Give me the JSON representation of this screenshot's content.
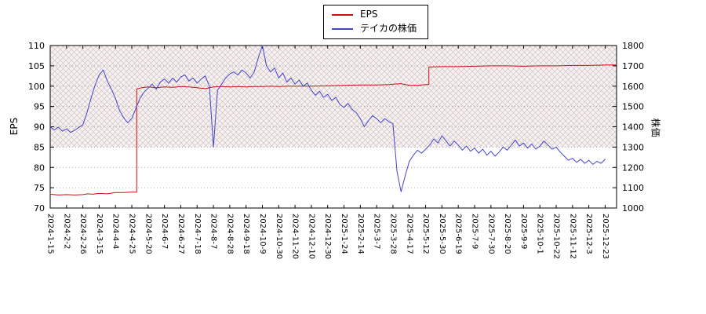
{
  "legend": {
    "items": [
      {
        "label": "EPS",
        "color": "#cc1111"
      },
      {
        "label": "テイカの株価",
        "color": "#4444cc"
      }
    ]
  },
  "chart_data": {
    "type": "line",
    "title": "",
    "grid": "horizontal-dotted",
    "legend_position": "top-center",
    "hatch_region": {
      "axis": "left",
      "y_from": 85,
      "y_to": 110,
      "fill": "#f7f1f1",
      "line_color": "#c9bcbc"
    },
    "x_axis": {
      "min": 0,
      "max": 34.7,
      "tick_labels": [
        "2024-1-15",
        "2024-2-2",
        "2024-2-26",
        "2024-3-15",
        "2024-4-4",
        "2024-4-25",
        "2024-5-20",
        "2024-6-7",
        "2024-6-27",
        "2024-7-18",
        "2024-8-7",
        "2024-8-28",
        "2024-9-18",
        "2024-10-9",
        "2024-10-30",
        "2024-11-20",
        "2024-12-10",
        "2024-12-30",
        "2025-1-24",
        "2025-2-14",
        "2025-3-7",
        "2025-3-28",
        "2025-4-17",
        "2025-5-12",
        "2025-5-30",
        "2025-6-19",
        "2025-7-9",
        "2025-7-30",
        "2025-8-20",
        "2025-9-9",
        "2025-10-1",
        "2025-10-22",
        "2025-11-12",
        "2025-12-3",
        "2025-12-23"
      ]
    },
    "y_left": {
      "label": "EPS",
      "min": 70,
      "max": 110,
      "ticks": [
        70,
        75,
        80,
        85,
        90,
        95,
        100,
        105,
        110
      ]
    },
    "y_right": {
      "label": "株価",
      "min": 1000,
      "max": 1800,
      "ticks": [
        1000,
        1100,
        1200,
        1300,
        1400,
        1500,
        1600,
        1700,
        1800
      ]
    },
    "series": [
      {
        "name": "EPS",
        "axis": "left",
        "color": "#cc1111",
        "points": [
          [
            0,
            73.4
          ],
          [
            0.5,
            73.2
          ],
          [
            1,
            73.3
          ],
          [
            1.5,
            73.2
          ],
          [
            2,
            73.3
          ],
          [
            2.3,
            73.5
          ],
          [
            2.6,
            73.4
          ],
          [
            3,
            73.6
          ],
          [
            3.5,
            73.5
          ],
          [
            4,
            73.8
          ],
          [
            4.5,
            73.8
          ],
          [
            5,
            73.9
          ],
          [
            5.3,
            73.9
          ],
          [
            5.3,
            99.3
          ],
          [
            5.6,
            99.6
          ],
          [
            6,
            99.8
          ],
          [
            6.5,
            99.6
          ],
          [
            7,
            99.8
          ],
          [
            7.5,
            99.7
          ],
          [
            8,
            99.9
          ],
          [
            8.5,
            99.8
          ],
          [
            9,
            99.6
          ],
          [
            9.5,
            99.4
          ],
          [
            10,
            99.8
          ],
          [
            10.5,
            99.9
          ],
          [
            11,
            99.8
          ],
          [
            11.5,
            99.9
          ],
          [
            12,
            99.8
          ],
          [
            12.5,
            99.9
          ],
          [
            13,
            99.9
          ],
          [
            13.5,
            100
          ],
          [
            14,
            99.9
          ],
          [
            14.5,
            100
          ],
          [
            15,
            100
          ],
          [
            16,
            100
          ],
          [
            17,
            100.1
          ],
          [
            18,
            100.2
          ],
          [
            19,
            100.3
          ],
          [
            20,
            100.3
          ],
          [
            20.8,
            100.4
          ],
          [
            21,
            100.5
          ],
          [
            21.5,
            100.6
          ],
          [
            22,
            100.2
          ],
          [
            22.5,
            100.2
          ],
          [
            23,
            100.4
          ],
          [
            23.2,
            100.4
          ],
          [
            23.2,
            104.7
          ],
          [
            24,
            104.8
          ],
          [
            25,
            104.8
          ],
          [
            26,
            104.9
          ],
          [
            27,
            105
          ],
          [
            28,
            105
          ],
          [
            29,
            104.9
          ],
          [
            30,
            105
          ],
          [
            31,
            105
          ],
          [
            32,
            105.1
          ],
          [
            33,
            105.1
          ],
          [
            34,
            105.2
          ],
          [
            34.7,
            105.2
          ]
        ]
      },
      {
        "name": "テイカの株価",
        "axis": "right",
        "color": "#4444cc",
        "x_start": 0,
        "x_step": 0.25,
        "values": [
          1400,
          1385,
          1398,
          1378,
          1390,
          1372,
          1383,
          1397,
          1410,
          1468,
          1540,
          1605,
          1655,
          1680,
          1625,
          1585,
          1540,
          1480,
          1445,
          1420,
          1440,
          1490,
          1540,
          1570,
          1590,
          1610,
          1585,
          1620,
          1635,
          1615,
          1640,
          1620,
          1645,
          1655,
          1625,
          1640,
          1615,
          1635,
          1650,
          1600,
          1300,
          1580,
          1610,
          1640,
          1660,
          1670,
          1655,
          1680,
          1665,
          1640,
          1670,
          1740,
          1800,
          1700,
          1670,
          1690,
          1640,
          1665,
          1620,
          1640,
          1610,
          1630,
          1600,
          1615,
          1580,
          1555,
          1575,
          1545,
          1560,
          1530,
          1545,
          1510,
          1495,
          1515,
          1485,
          1470,
          1440,
          1400,
          1430,
          1455,
          1440,
          1420,
          1440,
          1425,
          1415,
          1180,
          1080,
          1160,
          1230,
          1260,
          1285,
          1270,
          1290,
          1310,
          1340,
          1320,
          1355,
          1330,
          1305,
          1330,
          1310,
          1285,
          1305,
          1280,
          1295,
          1270,
          1290,
          1260,
          1280,
          1255,
          1275,
          1300,
          1285,
          1310,
          1335,
          1305,
          1320,
          1295,
          1315,
          1290,
          1305,
          1330,
          1310,
          1290,
          1300,
          1275,
          1255,
          1235,
          1245,
          1225,
          1240,
          1220,
          1235,
          1215,
          1230,
          1220,
          1240
        ]
      }
    ]
  }
}
